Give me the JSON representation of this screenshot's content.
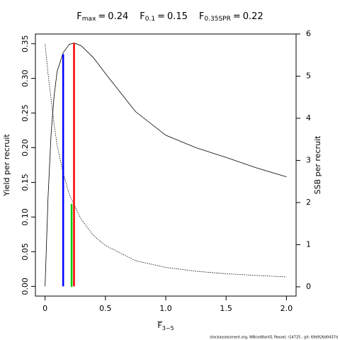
{
  "chart_data": {
    "type": "line",
    "title_parts": [
      {
        "main": "F",
        "sub": "max"
      },
      {
        "main": "F",
        "sub": "0.1"
      },
      {
        "main": "F",
        "sub": "0.35SPR"
      }
    ],
    "reference_lines": [
      {
        "x": 0.24,
        "top": 0.351,
        "axis": "y",
        "color": "#ff0000"
      },
      {
        "x": 0.15,
        "top": 0.335,
        "axis": "y",
        "color": "#0000ff"
      },
      {
        "x": 0.22,
        "top": 1.97,
        "axis": "y2",
        "color": "#00cc00"
      }
    ],
    "xlabel": {
      "main": "F",
      "sub": "3−5"
    },
    "ylabel": "Yield per recruit",
    "y2label": "SSB per recruit",
    "footnote": "stockassessment.org, WBcod8an01 flexxel, r14725 , git: 69d926d0437d",
    "x": [
      0,
      0.025,
      0.05,
      0.075,
      0.1,
      0.15,
      0.2,
      0.24,
      0.3,
      0.4,
      0.5,
      0.75,
      1.0,
      1.25,
      1.5,
      1.75,
      2.0
    ],
    "series": [
      {
        "color": "#000000",
        "axis": "y",
        "dash": false,
        "values": [
          0,
          0.13,
          0.22,
          0.275,
          0.31,
          0.337,
          0.349,
          0.351,
          0.347,
          0.33,
          0.307,
          0.252,
          0.218,
          0.2,
          0.186,
          0.171,
          0.158
        ]
      },
      {
        "color": "#000000",
        "axis": "y2",
        "dash": true,
        "values": [
          5.76,
          5.05,
          4.45,
          3.85,
          3.36,
          2.7,
          2.2,
          1.95,
          1.6,
          1.22,
          0.98,
          0.62,
          0.46,
          0.37,
          0.31,
          0.27,
          0.235
        ]
      }
    ],
    "xlim": [
      -0.08,
      2.08
    ],
    "xticks": [
      0,
      {
        "value": 0.5,
        "label": "0.5"
      },
      {
        "value": 1,
        "label": "1.0"
      },
      1.5,
      {
        "value": 2,
        "label": "2.0"
      }
    ],
    "ylim": [
      -0.014,
      0.364
    ],
    "yticks": [
      {
        "value": 0,
        "label": "0.00"
      },
      0.05,
      {
        "value": 0.1,
        "label": "0.10"
      },
      0.15,
      {
        "value": 0.2,
        "label": "0.20"
      },
      0.25,
      {
        "value": 0.3,
        "label": "0.30"
      },
      0.35
    ],
    "y2lim": [
      -0.22,
      6.0
    ],
    "y2ticks": [
      0,
      1,
      2,
      3,
      4,
      5,
      6
    ]
  }
}
